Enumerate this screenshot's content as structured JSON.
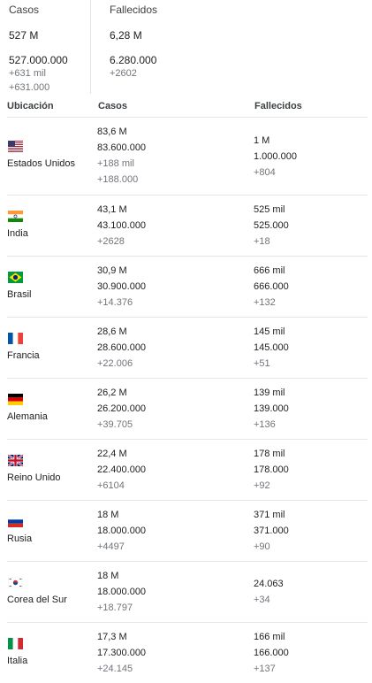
{
  "summary": {
    "cases": {
      "label": "Casos",
      "short": "527 M",
      "full": "527.000.000",
      "delta_short": "+631 mil",
      "delta_full": "+631.000"
    },
    "deaths": {
      "label": "Fallecidos",
      "short": "6,28 M",
      "full": "6.280.000",
      "delta": "+2602"
    }
  },
  "table": {
    "headers": {
      "location": "Ubicación",
      "cases": "Casos",
      "deaths": "Fallecidos"
    },
    "rows": [
      {
        "country": "Estados Unidos",
        "flag_icon": "flag-us-icon",
        "cases": [
          "83,6 M",
          "83.600.000",
          "+188 mil",
          "+188.000"
        ],
        "deaths": [
          "1 M",
          "1.000.000",
          "+804"
        ]
      },
      {
        "country": "India",
        "flag_icon": "flag-in-icon",
        "cases": [
          "43,1 M",
          "43.100.000",
          "+2628"
        ],
        "deaths": [
          "525 mil",
          "525.000",
          "+18"
        ]
      },
      {
        "country": "Brasil",
        "flag_icon": "flag-br-icon",
        "cases": [
          "30,9 M",
          "30.900.000",
          "+14.376"
        ],
        "deaths": [
          "666 mil",
          "666.000",
          "+132"
        ]
      },
      {
        "country": "Francia",
        "flag_icon": "flag-fr-icon",
        "cases": [
          "28,6 M",
          "28.600.000",
          "+22.006"
        ],
        "deaths": [
          "145 mil",
          "145.000",
          "+51"
        ]
      },
      {
        "country": "Alemania",
        "flag_icon": "flag-de-icon",
        "cases": [
          "26,2 M",
          "26.200.000",
          "+39.705"
        ],
        "deaths": [
          "139 mil",
          "139.000",
          "+136"
        ]
      },
      {
        "country": "Reino Unido",
        "flag_icon": "flag-gb-icon",
        "cases": [
          "22,4 M",
          "22.400.000",
          "+6104"
        ],
        "deaths": [
          "178 mil",
          "178.000",
          "+92"
        ]
      },
      {
        "country": "Rusia",
        "flag_icon": "flag-ru-icon",
        "cases": [
          "18 M",
          "18.000.000",
          "+4497"
        ],
        "deaths": [
          "371 mil",
          "371.000",
          "+90"
        ]
      },
      {
        "country": "Corea del Sur",
        "flag_icon": "flag-kr-icon",
        "cases": [
          "18 M",
          "18.000.000",
          "+18.797"
        ],
        "deaths": [
          "24.063",
          "+34"
        ]
      },
      {
        "country": "Italia",
        "flag_icon": "flag-it-icon",
        "cases": [
          "17,3 M",
          "17.300.000",
          "+24.145"
        ],
        "deaths": [
          "166 mil",
          "166.000",
          "+137"
        ]
      }
    ]
  },
  "colors": {
    "delta_text": "#70757a",
    "divider": "#e6e6e6",
    "text": "#202124"
  }
}
